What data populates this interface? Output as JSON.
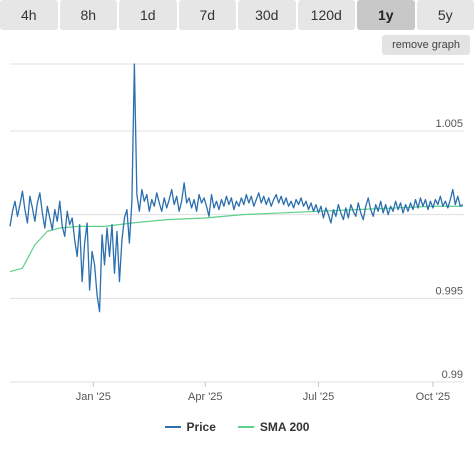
{
  "tabs": [
    {
      "label": "4h"
    },
    {
      "label": "8h"
    },
    {
      "label": "1d"
    },
    {
      "label": "7d"
    },
    {
      "label": "30d"
    },
    {
      "label": "120d"
    },
    {
      "label": "1y",
      "active": true
    },
    {
      "label": "5y"
    }
  ],
  "remove_graph_label": "remove graph",
  "colors": {
    "price": "#2b6fae",
    "sma": "#5dd08a",
    "grid": "#e0e0e0"
  },
  "chart_data": {
    "type": "line",
    "title": "",
    "xlabel": "",
    "ylabel": "",
    "ylim": [
      0.99,
      1.009
    ],
    "y_ticks": [
      {
        "value": 1.005,
        "label": "1.005"
      },
      {
        "value": 1.0,
        "label": ""
      },
      {
        "value": 0.995,
        "label": "0.995"
      },
      {
        "value": 0.99,
        "label": "0.99"
      }
    ],
    "x_range": [
      "2024-10-26",
      "2025-10-26"
    ],
    "x_ticks": [
      {
        "date": "2025-01-01",
        "label": "Jan '25"
      },
      {
        "date": "2025-04-01",
        "label": "Apr '25"
      },
      {
        "date": "2025-07-01",
        "label": "Jul '25"
      },
      {
        "date": "2025-10-01",
        "label": "Oct '25"
      }
    ],
    "grid": true,
    "legend_position": "bottom",
    "series": [
      {
        "name": "Price",
        "points": [
          [
            "2024-10-26",
            0.9993
          ],
          [
            "2024-10-28",
            1.0002
          ],
          [
            "2024-10-30",
            1.0008
          ],
          [
            "2024-11-01",
            0.9999
          ],
          [
            "2024-11-03",
            1.0006
          ],
          [
            "2024-11-05",
            1.0014
          ],
          [
            "2024-11-07",
            1.0003
          ],
          [
            "2024-11-09",
            0.9995
          ],
          [
            "2024-11-11",
            1.0011
          ],
          [
            "2024-11-13",
            1.0004
          ],
          [
            "2024-11-15",
            0.9996
          ],
          [
            "2024-11-17",
            1.0007
          ],
          [
            "2024-11-19",
            1.0013
          ],
          [
            "2024-11-21",
            1.0001
          ],
          [
            "2024-11-23",
            0.9992
          ],
          [
            "2024-11-25",
            1.0005
          ],
          [
            "2024-11-27",
            0.9998
          ],
          [
            "2024-11-29",
            0.9991
          ],
          [
            "2024-12-01",
            1.0003
          ],
          [
            "2024-12-03",
            0.9996
          ],
          [
            "2024-12-05",
            1.0008
          ],
          [
            "2024-12-07",
            0.9993
          ],
          [
            "2024-12-09",
            0.9987
          ],
          [
            "2024-12-11",
            1.0002
          ],
          [
            "2024-12-13",
            0.9994
          ],
          [
            "2024-12-15",
            0.9998
          ],
          [
            "2024-12-17",
            0.9985
          ],
          [
            "2024-12-19",
            0.9975
          ],
          [
            "2024-12-21",
            0.9994
          ],
          [
            "2024-12-23",
            0.996
          ],
          [
            "2024-12-25",
            0.9983
          ],
          [
            "2024-12-27",
            0.9995
          ],
          [
            "2024-12-29",
            0.9955
          ],
          [
            "2024-12-31",
            0.9978
          ],
          [
            "2025-01-02",
            0.997
          ],
          [
            "2025-01-04",
            0.9952
          ],
          [
            "2025-01-06",
            0.9942
          ],
          [
            "2025-01-08",
            0.9988
          ],
          [
            "2025-01-10",
            0.997
          ],
          [
            "2025-01-12",
            0.9992
          ],
          [
            "2025-01-14",
            0.9975
          ],
          [
            "2025-01-16",
            0.9994
          ],
          [
            "2025-01-18",
            0.9965
          ],
          [
            "2025-01-20",
            0.999
          ],
          [
            "2025-01-22",
            0.996
          ],
          [
            "2025-01-24",
            0.9985
          ],
          [
            "2025-01-26",
            0.9998
          ],
          [
            "2025-01-28",
            1.0003
          ],
          [
            "2025-01-30",
            0.9983
          ],
          [
            "2025-02-01",
            1.0008
          ],
          [
            "2025-02-03",
            1.009
          ],
          [
            "2025-02-05",
            1.0012
          ],
          [
            "2025-02-07",
            1.0002
          ],
          [
            "2025-02-09",
            1.0015
          ],
          [
            "2025-02-11",
            1.0008
          ],
          [
            "2025-02-13",
            1.0012
          ],
          [
            "2025-02-15",
            1.0002
          ],
          [
            "2025-02-17",
            1.0009
          ],
          [
            "2025-02-19",
            1.0005
          ],
          [
            "2025-02-21",
            1.0013
          ],
          [
            "2025-02-23",
            1.0007
          ],
          [
            "2025-02-25",
            1.0002
          ],
          [
            "2025-02-27",
            1.001
          ],
          [
            "2025-03-01",
            1.0004
          ],
          [
            "2025-03-03",
            1.0009
          ],
          [
            "2025-03-05",
            1.0015
          ],
          [
            "2025-03-07",
            1.0006
          ],
          [
            "2025-03-09",
            1.0011
          ],
          [
            "2025-03-11",
            1.0002
          ],
          [
            "2025-03-13",
            1.0008
          ],
          [
            "2025-03-15",
            1.0019
          ],
          [
            "2025-03-17",
            1.0007
          ],
          [
            "2025-03-19",
            1.001
          ],
          [
            "2025-03-21",
            1.0004
          ],
          [
            "2025-03-23",
            1.0009
          ],
          [
            "2025-03-25",
            1.0002
          ],
          [
            "2025-03-27",
            1.0012
          ],
          [
            "2025-03-29",
            1.0007
          ],
          [
            "2025-03-31",
            1.001
          ],
          [
            "2025-04-02",
            1.0005
          ],
          [
            "2025-04-04",
            0.9999
          ],
          [
            "2025-04-06",
            1.0012
          ],
          [
            "2025-04-08",
            1.0004
          ],
          [
            "2025-04-10",
            1.0008
          ],
          [
            "2025-04-12",
            1.0003
          ],
          [
            "2025-04-14",
            1.0009
          ],
          [
            "2025-04-16",
            1.0005
          ],
          [
            "2025-04-18",
            1.0011
          ],
          [
            "2025-04-20",
            1.0006
          ],
          [
            "2025-04-22",
            1.001
          ],
          [
            "2025-04-24",
            1.0003
          ],
          [
            "2025-04-26",
            1.0008
          ],
          [
            "2025-04-28",
            1.0005
          ],
          [
            "2025-04-30",
            1.001
          ],
          [
            "2025-05-02",
            1.0006
          ],
          [
            "2025-05-04",
            1.0012
          ],
          [
            "2025-05-06",
            1.0007
          ],
          [
            "2025-05-08",
            1.0011
          ],
          [
            "2025-05-10",
            1.0005
          ],
          [
            "2025-05-12",
            1.0009
          ],
          [
            "2025-05-14",
            1.0013
          ],
          [
            "2025-05-16",
            1.0007
          ],
          [
            "2025-05-18",
            1.0011
          ],
          [
            "2025-05-20",
            1.0006
          ],
          [
            "2025-05-22",
            1.001
          ],
          [
            "2025-05-24",
            1.0005
          ],
          [
            "2025-05-26",
            1.0009
          ],
          [
            "2025-05-28",
            1.0012
          ],
          [
            "2025-05-30",
            1.0007
          ],
          [
            "2025-06-01",
            1.0011
          ],
          [
            "2025-06-03",
            1.0006
          ],
          [
            "2025-06-05",
            1.001
          ],
          [
            "2025-06-07",
            1.0005
          ],
          [
            "2025-06-09",
            1.0008
          ],
          [
            "2025-06-11",
            1.0004
          ],
          [
            "2025-06-13",
            1.0009
          ],
          [
            "2025-06-15",
            1.0006
          ],
          [
            "2025-06-17",
            1.001
          ],
          [
            "2025-06-19",
            1.0005
          ],
          [
            "2025-06-21",
            1.0008
          ],
          [
            "2025-06-23",
            1.0003
          ],
          [
            "2025-06-25",
            1.0007
          ],
          [
            "2025-06-27",
            1.0002
          ],
          [
            "2025-06-29",
            1.0006
          ],
          [
            "2025-07-01",
            1.0001
          ],
          [
            "2025-07-03",
            1.0005
          ],
          [
            "2025-07-05",
            0.9998
          ],
          [
            "2025-07-07",
            1.0004
          ],
          [
            "2025-07-09",
            1.0
          ],
          [
            "2025-07-11",
            0.9995
          ],
          [
            "2025-07-13",
            1.0003
          ],
          [
            "2025-07-15",
            0.9999
          ],
          [
            "2025-07-17",
            1.0006
          ],
          [
            "2025-07-19",
            1.0001
          ],
          [
            "2025-07-21",
            0.9997
          ],
          [
            "2025-07-23",
            1.0004
          ],
          [
            "2025-07-25",
            0.9998
          ],
          [
            "2025-07-27",
            1.0006
          ],
          [
            "2025-07-29",
            1.0002
          ],
          [
            "2025-07-31",
            0.9999
          ],
          [
            "2025-08-02",
            1.0007
          ],
          [
            "2025-08-04",
            1.0001
          ],
          [
            "2025-08-06",
            0.9997
          ],
          [
            "2025-08-08",
            1.0005
          ],
          [
            "2025-08-10",
            1.001
          ],
          [
            "2025-08-12",
            1.0003
          ],
          [
            "2025-08-14",
            0.9999
          ],
          [
            "2025-08-16",
            1.0006
          ],
          [
            "2025-08-18",
            1.0002
          ],
          [
            "2025-08-20",
            1.0008
          ],
          [
            "2025-08-22",
            1.0001
          ],
          [
            "2025-08-24",
            1.0006
          ],
          [
            "2025-08-26",
            1.0
          ],
          [
            "2025-08-28",
            1.0005
          ],
          [
            "2025-08-30",
            1.0002
          ],
          [
            "2025-09-01",
            1.0008
          ],
          [
            "2025-09-03",
            1.0003
          ],
          [
            "2025-09-05",
            1.0007
          ],
          [
            "2025-09-07",
            1.0001
          ],
          [
            "2025-09-09",
            1.0006
          ],
          [
            "2025-09-11",
            1.0002
          ],
          [
            "2025-09-13",
            1.0007
          ],
          [
            "2025-09-15",
            1.0003
          ],
          [
            "2025-09-17",
            1.0009
          ],
          [
            "2025-09-19",
            1.0004
          ],
          [
            "2025-09-21",
            1.001
          ],
          [
            "2025-09-23",
            1.0005
          ],
          [
            "2025-09-25",
            1.0009
          ],
          [
            "2025-09-27",
            1.0003
          ],
          [
            "2025-09-29",
            1.0008
          ],
          [
            "2025-10-01",
            1.0004
          ],
          [
            "2025-10-03",
            1.0009
          ],
          [
            "2025-10-05",
            1.0006
          ],
          [
            "2025-10-07",
            1.0011
          ],
          [
            "2025-10-09",
            1.0005
          ],
          [
            "2025-10-11",
            1.0008
          ],
          [
            "2025-10-13",
            1.0004
          ],
          [
            "2025-10-15",
            1.0009
          ],
          [
            "2025-10-17",
            1.0015
          ],
          [
            "2025-10-19",
            1.0006
          ],
          [
            "2025-10-21",
            1.0011
          ],
          [
            "2025-10-23",
            1.0005
          ],
          [
            "2025-10-25",
            1.0006
          ]
        ]
      },
      {
        "name": "SMA 200",
        "points": [
          [
            "2024-10-26",
            0.9966
          ],
          [
            "2024-11-05",
            0.9968
          ],
          [
            "2024-11-15",
            0.9982
          ],
          [
            "2024-11-25",
            0.999
          ],
          [
            "2024-12-05",
            0.9992
          ],
          [
            "2024-12-20",
            0.9993
          ],
          [
            "2025-01-10",
            0.9993
          ],
          [
            "2025-02-01",
            0.9995
          ],
          [
            "2025-03-01",
            0.9997
          ],
          [
            "2025-04-01",
            0.9998
          ],
          [
            "2025-05-01",
            1.0
          ],
          [
            "2025-06-01",
            1.0001
          ],
          [
            "2025-07-01",
            1.0002
          ],
          [
            "2025-08-01",
            1.0003
          ],
          [
            "2025-09-01",
            1.0004
          ],
          [
            "2025-10-01",
            1.0005
          ],
          [
            "2025-10-25",
            1.0005
          ]
        ]
      }
    ]
  }
}
